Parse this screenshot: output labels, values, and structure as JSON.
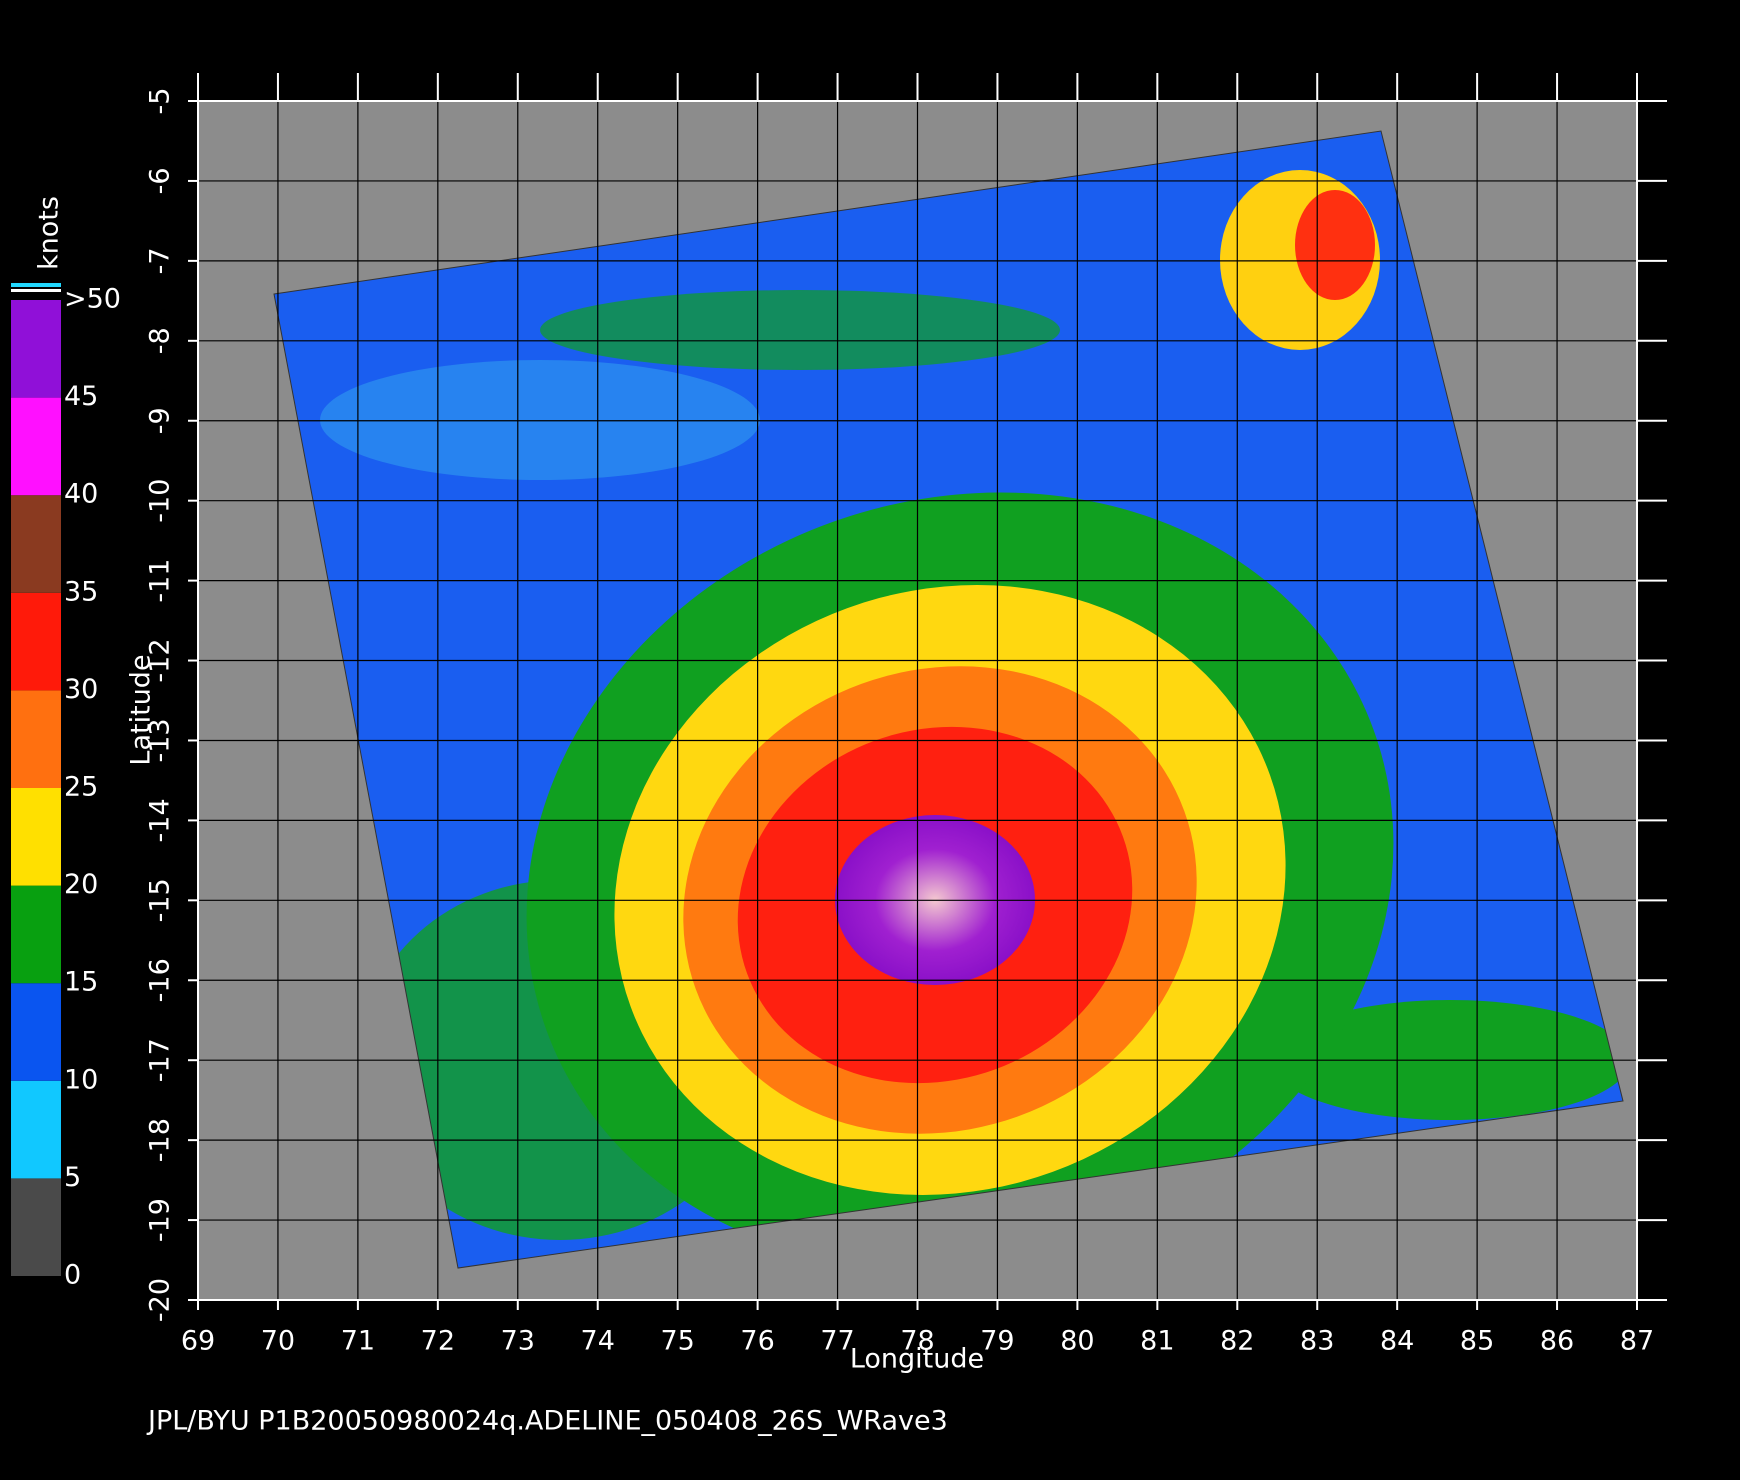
{
  "map": {
    "xlabel": "Longitude",
    "ylabel": "Latitude",
    "xlim": [
      69,
      87
    ],
    "ylim": [
      -20,
      -5
    ],
    "xticks": [
      69,
      70,
      71,
      72,
      73,
      74,
      75,
      76,
      77,
      78,
      79,
      80,
      81,
      82,
      83,
      84,
      85,
      86,
      87
    ],
    "yticks": [
      -5,
      -6,
      -7,
      -8,
      -9,
      -10,
      -11,
      -12,
      -13,
      -14,
      -15,
      -16,
      -17,
      -18,
      -19,
      -20
    ],
    "grid": true,
    "colorbar": {
      "label": "knots",
      "lim": [
        0,
        50
      ],
      "ticks": [
        0,
        5,
        10,
        15,
        20,
        25,
        30,
        35,
        40,
        45,
        {
          "value": 50,
          "label": ">50"
        }
      ],
      "colors": [
        "#4a4a4a",
        "#11c8ff",
        "#0a55f0",
        "#08a010",
        "#ffe000",
        "#ff7010",
        "#ff1a0a",
        "#8a3a20",
        "#ff10ff",
        "#9010d8"
      ]
    },
    "footer": "JPL/BYU  P1B20050980024q.ADELINE_050408_26S_WRave3"
  }
}
